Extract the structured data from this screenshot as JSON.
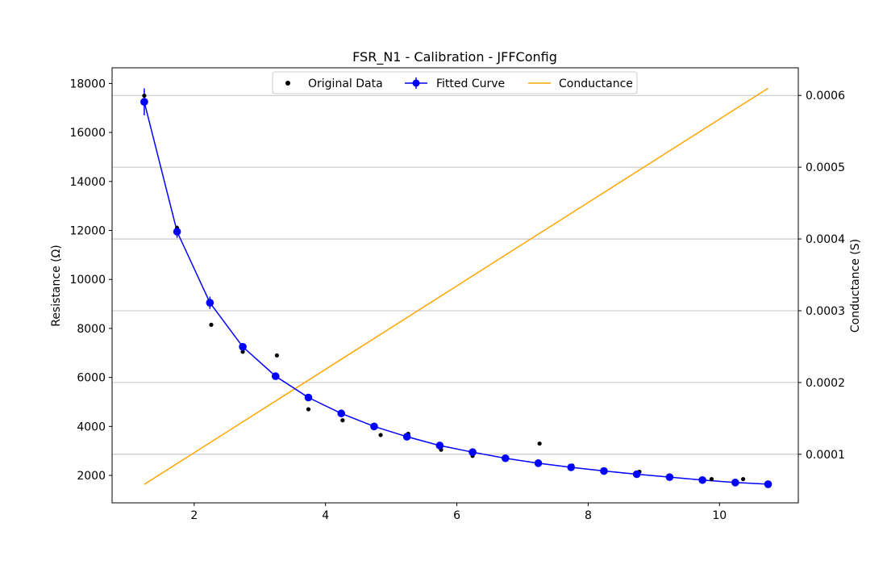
{
  "chart_data": {
    "type": "line",
    "title": "FSR_N1 - Calibration - JFFConfig",
    "xlabel": "",
    "ylabel": "Resistance (Ω)",
    "y2label": "Conductance (S)",
    "xlim": [
      0.75,
      11.2
    ],
    "ylim": [
      880,
      18640
    ],
    "y2lim": [
      3.23e-05,
      0.0006385
    ],
    "x_ticks": [
      2,
      4,
      6,
      8,
      10
    ],
    "y_ticks": [
      2000,
      4000,
      6000,
      8000,
      10000,
      12000,
      14000,
      16000,
      18000
    ],
    "y2_ticks": [
      0.0001,
      0.0002,
      0.0003,
      0.0004,
      0.0005,
      0.0006
    ],
    "y2_tick_labels": [
      "0.0001",
      "0.0002",
      "0.0003",
      "0.0004",
      "0.0005",
      "0.0006"
    ],
    "grid": "horizontal lines at right-axis ticks",
    "legend_position": "top-center",
    "colors": {
      "original": "#000000",
      "fitted": "#0000ff",
      "conductance": "#ffa500",
      "grid": "#b0b0b0"
    },
    "series": [
      {
        "name": "Original Data",
        "kind": "scatter",
        "axis": "left",
        "x": [
          1.24,
          1.74,
          2.26,
          2.74,
          3.26,
          3.74,
          4.26,
          4.84,
          5.26,
          5.76,
          6.24,
          6.74,
          7.26,
          7.76,
          8.26,
          8.78,
          9.24,
          9.88,
          10.36
        ],
        "y": [
          17500,
          12100,
          8150,
          7050,
          6900,
          4700,
          4250,
          3650,
          3700,
          3050,
          2800,
          2750,
          3300,
          2400,
          2200,
          2150,
          1950,
          1850,
          1850
        ]
      },
      {
        "name": "Fitted Curve",
        "kind": "line-markers-errorbars",
        "axis": "left",
        "x": [
          1.24,
          1.74,
          2.24,
          2.74,
          3.24,
          3.74,
          4.24,
          4.74,
          5.24,
          5.74,
          6.24,
          6.74,
          7.24,
          7.74,
          8.24,
          8.74,
          9.24,
          9.74,
          10.24,
          10.74
        ],
        "y": [
          17250,
          11950,
          9050,
          7250,
          6050,
          5180,
          4530,
          4000,
          3580,
          3220,
          2950,
          2700,
          2500,
          2330,
          2180,
          2050,
          1930,
          1810,
          1710,
          1640
        ],
        "yerr": [
          550,
          250,
          250,
          150,
          100,
          80,
          80,
          60,
          60,
          60,
          50,
          40,
          40,
          40,
          40,
          40,
          40,
          40,
          40,
          40
        ]
      },
      {
        "name": "Conductance",
        "kind": "line",
        "axis": "right",
        "x": [
          1.24,
          10.74
        ],
        "y": [
          5.8e-05,
          0.00061
        ]
      }
    ]
  }
}
